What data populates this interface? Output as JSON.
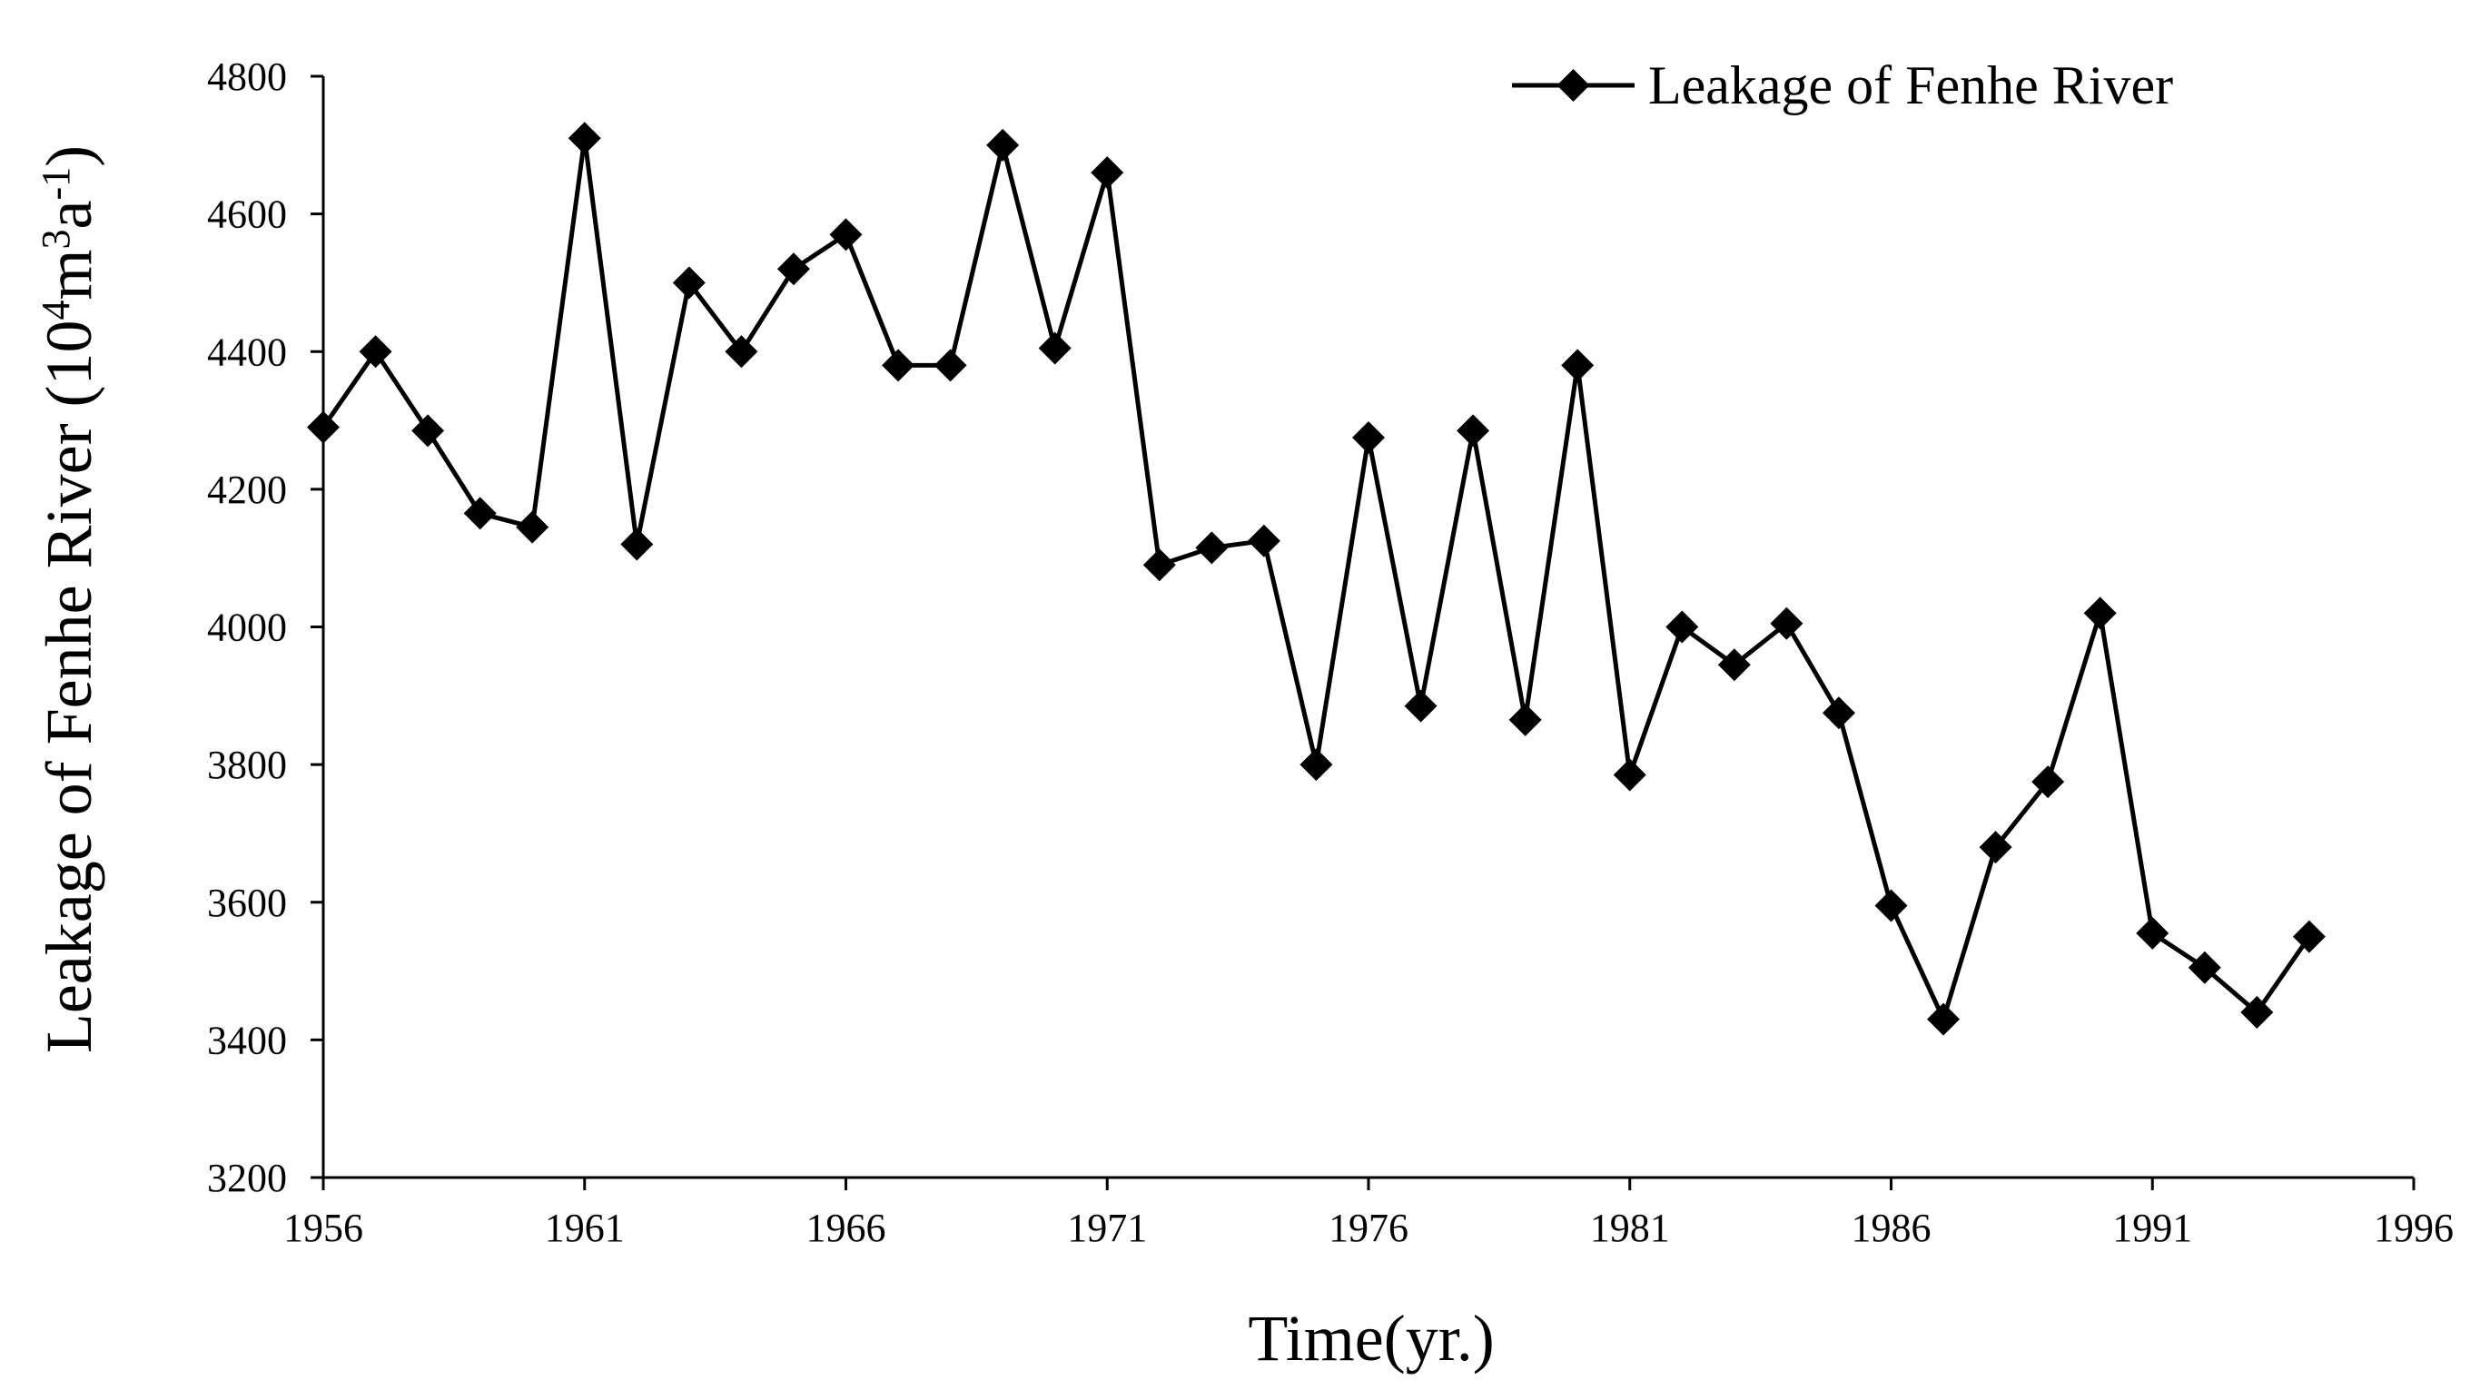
{
  "chart_data": {
    "type": "line",
    "xlabel": "Time(yr.)",
    "ylabel_main": "Leakage of Fenhe River (10",
    "ylabel_sup1": "4",
    "ylabel_mid": "m",
    "ylabel_sup2": "3",
    "ylabel_mid2": "a",
    "ylabel_sup3": "-1",
    "ylabel_end": ")",
    "xlim": [
      1956,
      1996
    ],
    "ylim": [
      3200,
      4800
    ],
    "x_ticks": [
      "1956",
      "1961",
      "1966",
      "1971",
      "1976",
      "1981",
      "1986",
      "1991",
      "1996"
    ],
    "y_ticks": [
      "3200",
      "3400",
      "3600",
      "3800",
      "4000",
      "4200",
      "4400",
      "4600",
      "4800"
    ],
    "legend_position": "top-right",
    "series": [
      {
        "name": "Leakage of Fenhe River",
        "color": "#000000",
        "marker": "diamond",
        "x": [
          1956,
          1957,
          1958,
          1959,
          1960,
          1961,
          1962,
          1963,
          1964,
          1965,
          1966,
          1967,
          1968,
          1969,
          1970,
          1971,
          1972,
          1973,
          1974,
          1975,
          1976,
          1977,
          1978,
          1979,
          1980,
          1981,
          1982,
          1983,
          1984,
          1985,
          1986,
          1987,
          1988,
          1989,
          1990,
          1991,
          1992,
          1993,
          1994
        ],
        "values": [
          4290,
          4400,
          4285,
          4165,
          4145,
          4710,
          4120,
          4500,
          4400,
          4520,
          4570,
          4380,
          4380,
          4700,
          4405,
          4660,
          4090,
          4115,
          4125,
          3800,
          4275,
          3885,
          4285,
          3865,
          4380,
          3785,
          4000,
          3945,
          4005,
          3875,
          3595,
          3430,
          3680,
          3775,
          4020,
          3555,
          3505,
          3440,
          3550
        ]
      }
    ]
  }
}
